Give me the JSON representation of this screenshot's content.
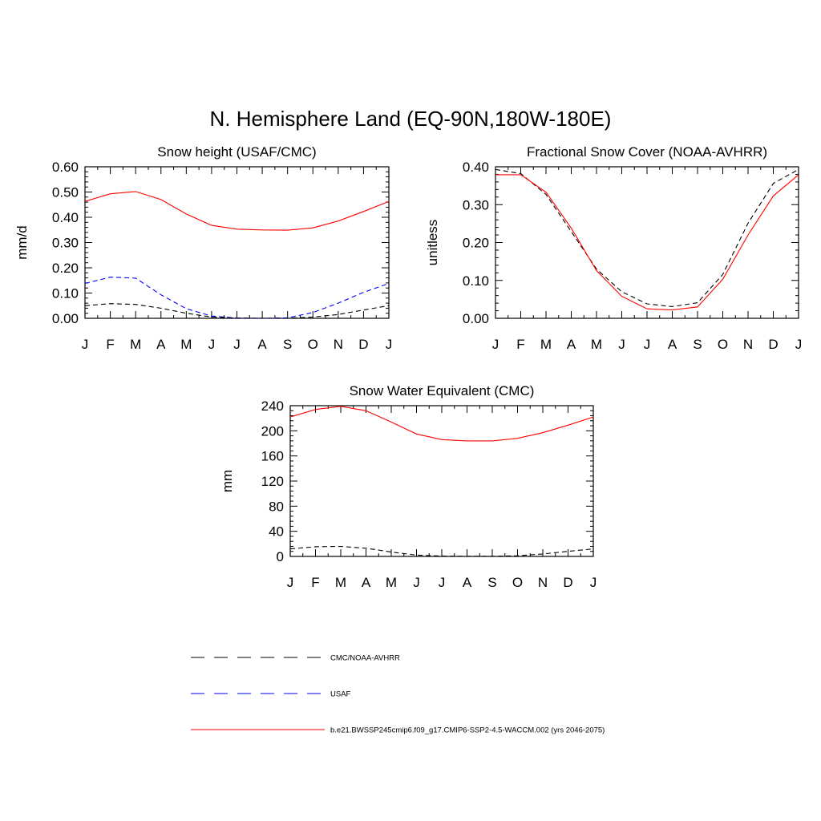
{
  "figure_title": "N. Hemisphere Land (EQ-90N,180W-180E)",
  "colors": {
    "observation": "#000000",
    "usaf": "#0000ff",
    "model": "#ff0000"
  },
  "legend": {
    "items": [
      {
        "label": "CMC/NOAA-AVHRR",
        "color": "#000000",
        "style": "dashed"
      },
      {
        "label": "USAF",
        "color": "#0000ff",
        "style": "dashed"
      },
      {
        "label": "b.e21.BWSSP245cmip6.f09_g17.CMIP6-SSP2-4.5-WACCM.002 (yrs 2046-2075)",
        "color": "#ff0000",
        "style": "solid"
      }
    ]
  },
  "chart_data": [
    {
      "type": "line",
      "title": "Snow height (USAF/CMC)",
      "xlabel": "",
      "ylabel": "mm/d",
      "x": [
        "J",
        "F",
        "M",
        "A",
        "M",
        "J",
        "J",
        "A",
        "S",
        "O",
        "N",
        "D",
        "J"
      ],
      "ylim": [
        0,
        0.6
      ],
      "yticks": [
        "0.00",
        "0.10",
        "0.20",
        "0.30",
        "0.40",
        "0.50",
        "0.60"
      ],
      "series": [
        {
          "style": "solid",
          "color": "#ff0000",
          "values": [
            0.463,
            0.493,
            0.502,
            0.47,
            0.413,
            0.368,
            0.353,
            0.35,
            0.349,
            0.358,
            0.385,
            0.423,
            0.463
          ]
        },
        {
          "style": "dashed",
          "color": "#0000ff",
          "values": [
            0.138,
            0.163,
            0.159,
            0.093,
            0.038,
            0.009,
            0.001,
            0.0,
            0.002,
            0.023,
            0.06,
            0.103,
            0.138
          ]
        },
        {
          "style": "dashed",
          "color": "#000000",
          "values": [
            0.05,
            0.058,
            0.055,
            0.04,
            0.02,
            0.005,
            0.001,
            0.0,
            0.0,
            0.005,
            0.015,
            0.033,
            0.05
          ]
        }
      ]
    },
    {
      "type": "line",
      "title": "Fractional Snow Cover (NOAA-AVHRR)",
      "xlabel": "",
      "ylabel": "unitless",
      "x": [
        "J",
        "F",
        "M",
        "A",
        "M",
        "J",
        "J",
        "A",
        "S",
        "O",
        "N",
        "D",
        "J"
      ],
      "ylim": [
        0,
        0.4
      ],
      "yticks": [
        "0.00",
        "0.10",
        "0.20",
        "0.30",
        "0.40"
      ],
      "series": [
        {
          "style": "solid",
          "color": "#ff0000",
          "values": [
            0.379,
            0.379,
            0.333,
            0.238,
            0.126,
            0.058,
            0.025,
            0.022,
            0.03,
            0.103,
            0.22,
            0.323,
            0.379
          ]
        },
        {
          "style": "dashed",
          "color": "#000000",
          "values": [
            0.393,
            0.382,
            0.327,
            0.229,
            0.13,
            0.07,
            0.038,
            0.031,
            0.041,
            0.116,
            0.251,
            0.356,
            0.393
          ]
        }
      ]
    },
    {
      "type": "line",
      "title": "Snow Water Equivalent (CMC)",
      "xlabel": "",
      "ylabel": "mm",
      "x": [
        "J",
        "F",
        "M",
        "A",
        "M",
        "J",
        "J",
        "A",
        "S",
        "O",
        "N",
        "D",
        "J"
      ],
      "ylim": [
        0,
        240
      ],
      "yticks": [
        "0",
        "40",
        "80",
        "120",
        "160",
        "200",
        "240"
      ],
      "series": [
        {
          "style": "solid",
          "color": "#ff0000",
          "values": [
            222,
            234,
            239,
            232,
            214,
            195,
            186,
            184,
            184,
            188,
            197,
            209,
            222
          ]
        },
        {
          "style": "dashed",
          "color": "#000000",
          "values": [
            12,
            15.5,
            16,
            13,
            7,
            2,
            0.5,
            0.2,
            0.3,
            1,
            4,
            8,
            12
          ]
        }
      ]
    }
  ]
}
